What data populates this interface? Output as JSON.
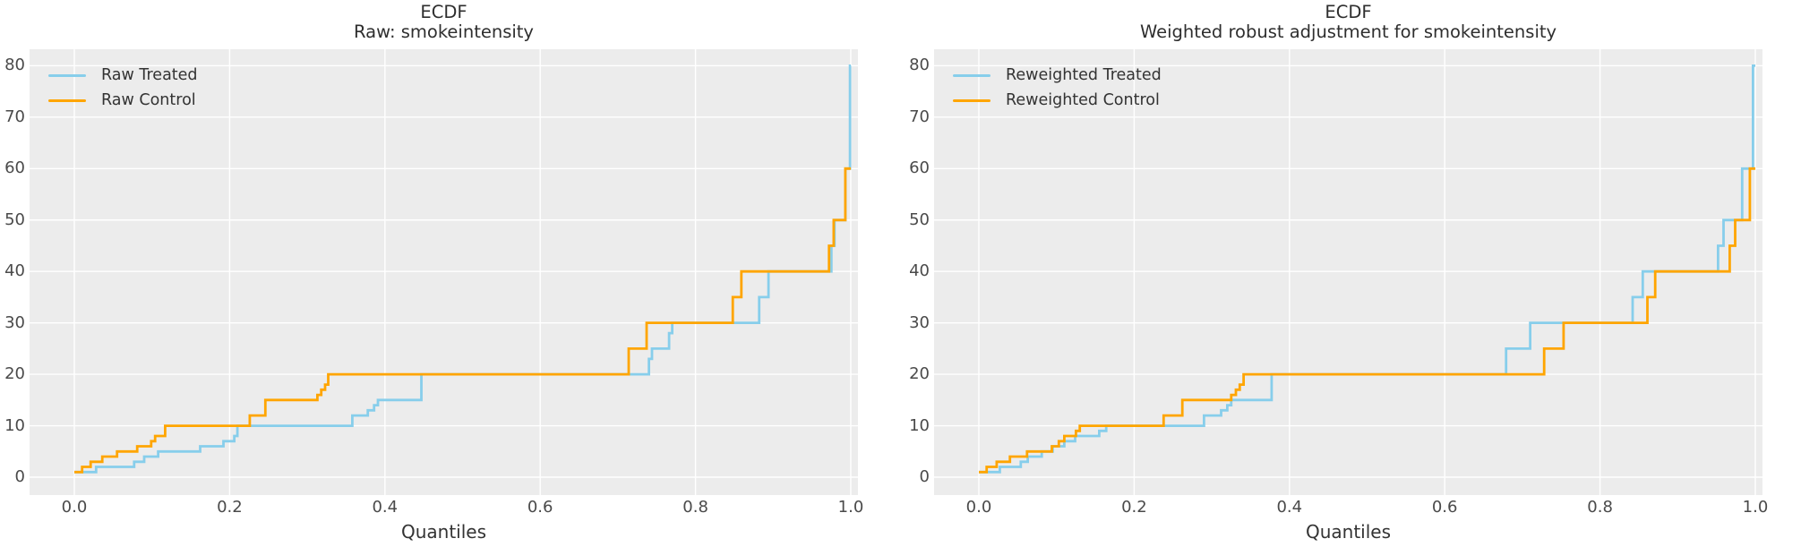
{
  "figure": {
    "background": "#ffffff",
    "panel_bg": "#ececec",
    "grid_color": "#ffffff"
  },
  "chart_data": [
    {
      "type": "line",
      "subtype": "step-quantile-ecdf",
      "title": "ECDF",
      "subtitle": "Raw: smokeintensity",
      "xlabel": "Quantiles",
      "ylabel": "",
      "grid": true,
      "legend_position": "upper left",
      "panel_bg": "#ececec",
      "grid_color": "#ffffff",
      "xlim": [
        -0.058,
        1.009
      ],
      "ylim": [
        -3.5,
        83.2
      ],
      "x_ticks": [
        0.0,
        0.2,
        0.4,
        0.6,
        0.8,
        1.0
      ],
      "x_tick_labels": [
        "0.0",
        "0.2",
        "0.4",
        "0.6",
        "0.8",
        "1.0"
      ],
      "y_ticks": [
        0,
        10,
        20,
        30,
        40,
        50,
        60,
        70,
        80
      ],
      "series": [
        {
          "name": "Raw Treated",
          "color": "#87CEEB",
          "points": [
            [
              0,
              1
            ],
            [
              0.028,
              2
            ],
            [
              0.077,
              3
            ],
            [
              0.09,
              4
            ],
            [
              0.108,
              5
            ],
            [
              0.162,
              6
            ],
            [
              0.192,
              7
            ],
            [
              0.206,
              8
            ],
            [
              0.21,
              10
            ],
            [
              0.358,
              12
            ],
            [
              0.378,
              13
            ],
            [
              0.386,
              14
            ],
            [
              0.391,
              15
            ],
            [
              0.447,
              20
            ],
            [
              0.74,
              23
            ],
            [
              0.744,
              25
            ],
            [
              0.766,
              28
            ],
            [
              0.77,
              30
            ],
            [
              0.882,
              35
            ],
            [
              0.894,
              40
            ],
            [
              0.975,
              45
            ],
            [
              0.979,
              50
            ],
            [
              0.993,
              60
            ],
            [
              0.999,
              80
            ]
          ]
        },
        {
          "name": "Raw Control",
          "color": "#FFA500",
          "points": [
            [
              0,
              1
            ],
            [
              0.01,
              2
            ],
            [
              0.021,
              3
            ],
            [
              0.036,
              4
            ],
            [
              0.055,
              5
            ],
            [
              0.081,
              6
            ],
            [
              0.099,
              7
            ],
            [
              0.104,
              8
            ],
            [
              0.117,
              10
            ],
            [
              0.226,
              12
            ],
            [
              0.246,
              15
            ],
            [
              0.313,
              16
            ],
            [
              0.318,
              17
            ],
            [
              0.323,
              18
            ],
            [
              0.327,
              20
            ],
            [
              0.714,
              25
            ],
            [
              0.737,
              30
            ],
            [
              0.848,
              35
            ],
            [
              0.859,
              40
            ],
            [
              0.972,
              45
            ],
            [
              0.978,
              50
            ],
            [
              0.993,
              60
            ]
          ]
        }
      ]
    },
    {
      "type": "line",
      "subtype": "step-quantile-ecdf",
      "title": "ECDF",
      "subtitle": "Weighted robust adjustment for smokeintensity",
      "xlabel": "Quantiles",
      "ylabel": "",
      "grid": true,
      "legend_position": "upper left",
      "panel_bg": "#ececec",
      "grid_color": "#ffffff",
      "xlim": [
        -0.058,
        1.009
      ],
      "ylim": [
        -3.5,
        83.2
      ],
      "x_ticks": [
        0.0,
        0.2,
        0.4,
        0.6,
        0.8,
        1.0
      ],
      "x_tick_labels": [
        "0.0",
        "0.2",
        "0.4",
        "0.6",
        "0.8",
        "1.0"
      ],
      "y_ticks": [
        0,
        10,
        20,
        30,
        40,
        50,
        60,
        70,
        80
      ],
      "series": [
        {
          "name": "Reweighted Treated",
          "color": "#87CEEB",
          "points": [
            [
              0,
              1
            ],
            [
              0.027,
              2
            ],
            [
              0.054,
              3
            ],
            [
              0.063,
              4
            ],
            [
              0.081,
              5
            ],
            [
              0.095,
              6
            ],
            [
              0.11,
              7
            ],
            [
              0.124,
              8
            ],
            [
              0.155,
              9
            ],
            [
              0.164,
              10
            ],
            [
              0.29,
              12
            ],
            [
              0.312,
              13
            ],
            [
              0.32,
              14
            ],
            [
              0.325,
              15
            ],
            [
              0.377,
              20
            ],
            [
              0.679,
              25
            ],
            [
              0.71,
              30
            ],
            [
              0.842,
              35
            ],
            [
              0.855,
              40
            ],
            [
              0.952,
              45
            ],
            [
              0.959,
              50
            ],
            [
              0.983,
              60
            ],
            [
              0.997,
              80
            ]
          ]
        },
        {
          "name": "Reweighted Control",
          "color": "#FFA500",
          "points": [
            [
              0,
              1
            ],
            [
              0.01,
              2
            ],
            [
              0.023,
              3
            ],
            [
              0.04,
              4
            ],
            [
              0.062,
              5
            ],
            [
              0.094,
              6
            ],
            [
              0.103,
              7
            ],
            [
              0.11,
              8
            ],
            [
              0.125,
              9
            ],
            [
              0.13,
              10
            ],
            [
              0.238,
              12
            ],
            [
              0.262,
              15
            ],
            [
              0.325,
              16
            ],
            [
              0.331,
              17
            ],
            [
              0.336,
              18
            ],
            [
              0.341,
              20
            ],
            [
              0.728,
              25
            ],
            [
              0.753,
              30
            ],
            [
              0.861,
              35
            ],
            [
              0.871,
              40
            ],
            [
              0.967,
              45
            ],
            [
              0.974,
              50
            ],
            [
              0.993,
              60
            ]
          ]
        }
      ]
    }
  ]
}
